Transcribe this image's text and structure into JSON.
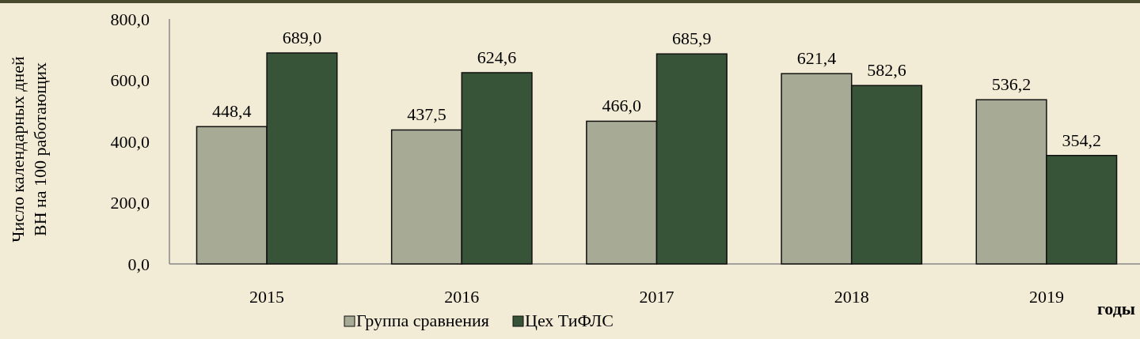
{
  "chart_data": {
    "type": "bar",
    "xlabel": "годы",
    "ylabel": "Число календарных дней\nВН на 100 работающих",
    "categories": [
      "2015",
      "2016",
      "2017",
      "2018",
      "2019"
    ],
    "series": [
      {
        "name": "Группа сравнения",
        "color": "#a7aa95",
        "values": [
          448.4,
          437.5,
          466.0,
          621.4,
          536.2
        ],
        "value_labels": [
          "448,4",
          "437,5",
          "466,0",
          "621,4",
          "536,2"
        ]
      },
      {
        "name": "Цех ТиФЛС",
        "color": "#375438",
        "values": [
          689.0,
          624.6,
          685.9,
          582.6,
          354.2
        ],
        "value_labels": [
          "689,0",
          "624,6",
          "685,9",
          "582,6",
          "354,2"
        ]
      }
    ],
    "ylim": [
      0,
      800
    ],
    "yticks": [
      {
        "value": 0,
        "label": "0,0"
      },
      {
        "value": 200,
        "label": "200,0"
      },
      {
        "value": 400,
        "label": "400,0"
      },
      {
        "value": 600,
        "label": "600,0"
      },
      {
        "value": 800,
        "label": "800,0"
      }
    ],
    "legend": "bottom",
    "grid": false
  }
}
